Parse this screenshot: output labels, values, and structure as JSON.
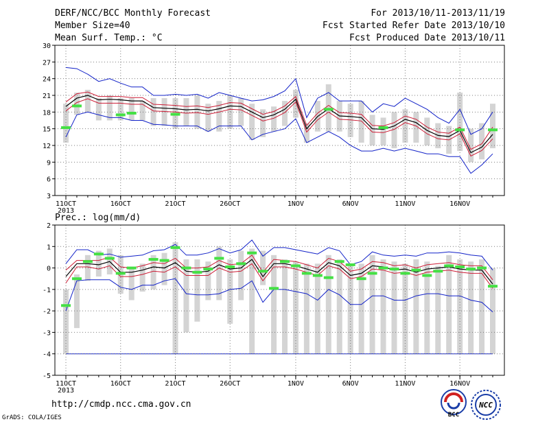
{
  "header": {
    "title": "DERF/NCC/BCC Monthly Forecast",
    "member_size": "Member Size=40",
    "variable": "Mean Surf. Temp.: °C",
    "period": "For 2013/10/11-2013/11/19",
    "started": "Fcst Started Refer Date 2013/10/10",
    "produced": "Fcst Produced Date 2013/10/11"
  },
  "footer": {
    "url": "http://cmdp.ncc.cma.gov.cn",
    "grads": "GrADS: COLA/IGES",
    "logo_bcc": "BCC",
    "logo_ncc": "NCC"
  },
  "colors": {
    "box": "#d4d4d4",
    "mean": "#000000",
    "band": "#cc1a33",
    "envelope": "#1020c8",
    "obs": "#44e044",
    "grid": "#7a7a7a"
  },
  "chart_data": [
    {
      "type": "box-envelope",
      "title": "",
      "ylabel": "",
      "ylim": [
        3,
        30
      ],
      "yticks": [
        3,
        6,
        9,
        12,
        15,
        18,
        21,
        24,
        27,
        30
      ],
      "x": [
        0,
        39
      ],
      "xticks": [
        {
          "day": 0,
          "label": "11OCT",
          "sub": "2013"
        },
        {
          "day": 5,
          "label": "16OCT"
        },
        {
          "day": 10,
          "label": "21OCT"
        },
        {
          "day": 15,
          "label": "26OCT"
        },
        {
          "day": 21,
          "label": "1NOV"
        },
        {
          "day": 26,
          "label": "6NOV"
        },
        {
          "day": 31,
          "label": "11NOV"
        },
        {
          "day": 36,
          "label": "16NOV"
        }
      ],
      "series": [
        {
          "role": "box_low",
          "values": [
            12.5,
            17.5,
            18.0,
            16.5,
            16.5,
            16.5,
            16.5,
            16.5,
            15.5,
            15.5,
            15.0,
            15.5,
            15.0,
            14.5,
            14.5,
            15.0,
            15.5,
            13.0,
            13.5,
            14.5,
            15.5,
            17.0,
            12.5,
            14.5,
            14.5,
            14.5,
            13.5,
            12.5,
            12.0,
            12.0,
            11.5,
            12.5,
            12.5,
            12.0,
            11.5,
            10.5,
            11.0,
            9.0,
            9.5,
            11.5
          ]
        },
        {
          "role": "box_high",
          "values": [
            19.5,
            21.5,
            22.0,
            20.5,
            21.0,
            20.5,
            20.5,
            20.0,
            20.5,
            20.5,
            20.5,
            20.5,
            21.0,
            19.5,
            20.0,
            21.0,
            20.5,
            19.5,
            18.5,
            19.0,
            20.0,
            22.0,
            16.0,
            20.0,
            23.0,
            20.0,
            19.5,
            20.0,
            17.5,
            17.0,
            18.0,
            18.5,
            18.0,
            17.0,
            16.0,
            15.5,
            21.5,
            15.0,
            16.0,
            19.5
          ]
        },
        {
          "role": "ens_max",
          "values": [
            26.0,
            25.8,
            24.8,
            23.5,
            24.0,
            23.2,
            22.5,
            22.5,
            21.0,
            21.0,
            21.2,
            21.0,
            21.2,
            20.5,
            21.5,
            21.0,
            20.5,
            20.0,
            20.2,
            20.8,
            21.8,
            24.0,
            17.0,
            20.5,
            21.5,
            20.0,
            20.0,
            20.0,
            18.0,
            19.5,
            19.0,
            20.5,
            19.5,
            18.5,
            17.0,
            16.0,
            18.5,
            14.0,
            15.0,
            18.0
          ]
        },
        {
          "role": "band_high",
          "values": [
            19.8,
            21.3,
            21.6,
            20.8,
            20.8,
            20.8,
            20.6,
            20.6,
            19.4,
            19.3,
            19.2,
            19.0,
            19.1,
            18.8,
            19.2,
            19.7,
            19.6,
            18.6,
            17.6,
            18.1,
            19.1,
            20.8,
            15.6,
            17.8,
            19.2,
            17.9,
            17.8,
            17.6,
            15.6,
            15.5,
            16.1,
            17.3,
            16.7,
            15.3,
            14.4,
            14.2,
            15.3,
            11.3,
            12.3,
            15.3
          ]
        },
        {
          "role": "mean",
          "values": [
            19.0,
            20.5,
            21.0,
            20.2,
            20.3,
            20.2,
            20.0,
            20.0,
            18.8,
            18.7,
            18.6,
            18.4,
            18.5,
            18.2,
            18.6,
            19.1,
            19.0,
            18.0,
            17.0,
            17.5,
            18.5,
            20.3,
            15.0,
            17.2,
            18.6,
            17.3,
            17.2,
            17.0,
            15.0,
            14.9,
            15.5,
            16.7,
            16.1,
            14.7,
            13.8,
            13.6,
            14.7,
            10.7,
            11.7,
            14.0
          ]
        },
        {
          "role": "band_low",
          "values": [
            18.2,
            19.7,
            20.4,
            19.6,
            19.6,
            19.6,
            19.4,
            19.4,
            18.2,
            18.1,
            18.0,
            17.8,
            17.9,
            17.6,
            18.0,
            18.5,
            18.4,
            17.4,
            16.4,
            16.9,
            17.9,
            19.8,
            14.4,
            16.6,
            18.0,
            16.7,
            16.6,
            16.4,
            14.4,
            14.3,
            14.9,
            16.1,
            15.5,
            14.1,
            13.2,
            13.0,
            14.1,
            10.1,
            11.1,
            13.2
          ]
        },
        {
          "role": "ens_min",
          "values": [
            13.5,
            17.5,
            18.0,
            17.5,
            17.0,
            17.0,
            16.5,
            16.5,
            15.8,
            15.7,
            15.5,
            15.5,
            15.5,
            14.5,
            15.5,
            15.5,
            15.5,
            13.0,
            14.0,
            14.5,
            15.0,
            16.8,
            12.5,
            13.5,
            14.5,
            13.5,
            12.0,
            11.0,
            11.0,
            11.5,
            11.0,
            11.5,
            11.0,
            10.5,
            10.5,
            10.0,
            10.0,
            7.0,
            8.5,
            10.5
          ]
        },
        {
          "role": "obs",
          "values": [
            15.2,
            19.1,
            null,
            null,
            null,
            17.5,
            17.8,
            null,
            null,
            null,
            17.6,
            null,
            null,
            null,
            null,
            null,
            null,
            null,
            null,
            null,
            null,
            null,
            null,
            null,
            18.5,
            null,
            null,
            null,
            null,
            15.2,
            null,
            null,
            null,
            null,
            null,
            null,
            14.8,
            null,
            null,
            14.8
          ]
        }
      ]
    },
    {
      "type": "box-envelope",
      "title": "Prec.: log(mm/d)",
      "ylabel": "",
      "ylim": [
        -5,
        2
      ],
      "yticks": [
        -5,
        -4,
        -3,
        -2,
        -1,
        0,
        1,
        2
      ],
      "x": [
        0,
        39
      ],
      "xticks": [
        {
          "day": 0,
          "label": "11OCT",
          "sub": "2013"
        },
        {
          "day": 5,
          "label": "16OCT"
        },
        {
          "day": 10,
          "label": "21OCT"
        },
        {
          "day": 15,
          "label": "26OCT"
        },
        {
          "day": 21,
          "label": "1NOV"
        },
        {
          "day": 26,
          "label": "6NOV"
        },
        {
          "day": 31,
          "label": "11NOV"
        },
        {
          "day": 36,
          "label": "16NOV"
        }
      ],
      "series": [
        {
          "role": "box_low",
          "values": [
            -4.0,
            -2.8,
            -0.6,
            -0.4,
            -0.3,
            -1.2,
            -1.5,
            -1.1,
            -1.0,
            -0.8,
            -4.0,
            -3.0,
            -2.5,
            -1.5,
            -1.5,
            -2.6,
            -1.5,
            -4.0,
            -0.8,
            -4.0,
            -4.0,
            -4.0,
            -4.0,
            -4.0,
            -4.0,
            -4.0,
            -4.0,
            -4.0,
            -4.0,
            -4.0,
            -4.0,
            -4.0,
            -4.0,
            -4.0,
            -4.0,
            -4.0,
            -4.0,
            -4.0,
            -4.0,
            -4.0
          ]
        },
        {
          "role": "box_high",
          "values": [
            -1.0,
            -0.3,
            0.6,
            0.8,
            0.9,
            0.6,
            0.0,
            0.2,
            0.6,
            0.7,
            1.2,
            0.4,
            0.4,
            0.3,
            1.0,
            0.4,
            0.8,
            0.9,
            0.8,
            0.6,
            0.4,
            0.3,
            0.2,
            0.2,
            0.6,
            0.4,
            0.2,
            0.2,
            0.6,
            0.4,
            0.3,
            0.2,
            0.4,
            0.3,
            0.1,
            0.6,
            0.4,
            0.3,
            0.4,
            0.0
          ]
        },
        {
          "role": "ens_max",
          "values": [
            0.2,
            0.85,
            0.85,
            0.6,
            0.65,
            0.5,
            0.55,
            0.6,
            0.8,
            0.85,
            1.1,
            0.6,
            0.6,
            0.7,
            0.9,
            0.7,
            0.85,
            1.3,
            0.55,
            0.95,
            0.95,
            0.85,
            0.75,
            0.65,
            0.95,
            0.8,
            0.15,
            0.3,
            0.75,
            0.6,
            0.55,
            0.6,
            0.55,
            0.7,
            0.7,
            0.75,
            0.7,
            0.6,
            0.55,
            -0.1
          ]
        },
        {
          "role": "band_high",
          "values": [
            -0.1,
            0.35,
            0.35,
            0.35,
            0.5,
            0.05,
            0.0,
            0.1,
            0.25,
            0.2,
            0.45,
            0.0,
            0.0,
            0.05,
            0.35,
            0.15,
            0.2,
            0.6,
            -0.2,
            0.4,
            0.35,
            0.3,
            0.15,
            0.0,
            0.45,
            0.3,
            -0.15,
            -0.05,
            0.3,
            0.25,
            0.1,
            0.15,
            0.0,
            0.15,
            0.2,
            0.25,
            0.15,
            0.1,
            0.1,
            -0.55
          ]
        },
        {
          "role": "mean",
          "values": [
            -0.4,
            0.2,
            0.2,
            0.15,
            0.3,
            -0.2,
            -0.2,
            -0.1,
            0.05,
            0.0,
            0.25,
            -0.15,
            -0.2,
            -0.15,
            0.15,
            -0.05,
            0.0,
            0.4,
            -0.4,
            0.2,
            0.2,
            0.1,
            -0.05,
            -0.2,
            0.25,
            0.1,
            -0.35,
            -0.25,
            0.1,
            0.05,
            -0.1,
            -0.05,
            -0.2,
            -0.05,
            0.0,
            0.05,
            -0.05,
            -0.1,
            -0.1,
            -0.75
          ]
        },
        {
          "role": "band_low",
          "values": [
            -0.7,
            0.05,
            0.05,
            -0.05,
            0.1,
            -0.4,
            -0.4,
            -0.3,
            -0.15,
            -0.2,
            0.05,
            -0.35,
            -0.35,
            -0.35,
            0.0,
            -0.2,
            -0.15,
            0.2,
            -0.6,
            0.05,
            0.05,
            -0.05,
            -0.2,
            -0.35,
            0.1,
            -0.05,
            -0.5,
            -0.4,
            -0.05,
            -0.1,
            -0.25,
            -0.2,
            -0.35,
            -0.2,
            -0.15,
            -0.1,
            -0.2,
            -0.25,
            -0.25,
            -0.95
          ]
        },
        {
          "role": "ens_min",
          "values": [
            -2.0,
            -0.6,
            -0.55,
            -0.55,
            -0.55,
            -0.9,
            -1.0,
            -0.8,
            -0.8,
            -0.6,
            -0.5,
            -1.2,
            -1.25,
            -1.25,
            -1.2,
            -1.0,
            -0.95,
            -0.6,
            -1.6,
            -1.0,
            -1.0,
            -1.1,
            -1.2,
            -1.5,
            -1.0,
            -1.25,
            -1.7,
            -1.7,
            -1.3,
            -1.3,
            -1.5,
            -1.5,
            -1.3,
            -1.2,
            -1.2,
            -1.3,
            -1.3,
            -1.5,
            -1.6,
            -2.05
          ]
        },
        {
          "role": "obs",
          "values": [
            -1.75,
            -0.5,
            0.3,
            0.65,
            0.45,
            -0.25,
            0.0,
            null,
            0.4,
            0.35,
            0.95,
            0.0,
            -0.2,
            -0.05,
            0.45,
            0.05,
            0.2,
            0.7,
            -0.15,
            -0.95,
            0.3,
            0.1,
            -0.25,
            -0.35,
            -0.45,
            0.3,
            0.15,
            -0.5,
            -0.25,
            0.0,
            -0.05,
            -0.25,
            -0.1,
            -0.35,
            -0.15,
            0.1,
            0.05,
            -0.05,
            0.0,
            -0.85
          ]
        },
        {
          "role": "floor",
          "values": [
            -4.0
          ]
        }
      ]
    }
  ]
}
